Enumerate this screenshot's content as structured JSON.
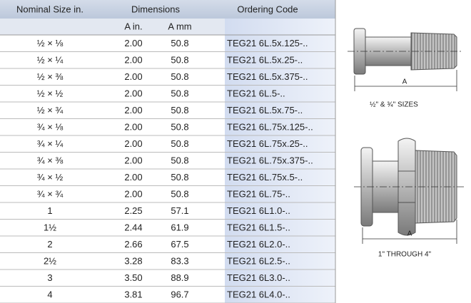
{
  "table": {
    "header": [
      "Nominal Size in.",
      "Dimensions",
      "Ordering Code"
    ],
    "subheader": [
      "A in.",
      "A mm"
    ],
    "rows": [
      [
        "½ × ⅛",
        "2.00",
        "50.8",
        "TEG21 6L.5x.125-.."
      ],
      [
        "½ × ¼",
        "2.00",
        "50.8",
        "TEG21 6L.5x.25-.."
      ],
      [
        "½ × ⅜",
        "2.00",
        "50.8",
        "TEG21 6L.5x.375-.."
      ],
      [
        "½ × ½",
        "2.00",
        "50.8",
        "TEG21 6L.5-.."
      ],
      [
        "½ × ¾",
        "2.00",
        "50.8",
        "TEG21 6L.5x.75-.."
      ],
      [
        "¾ × ⅛",
        "2.00",
        "50.8",
        "TEG21 6L.75x.125-.."
      ],
      [
        "¾ × ¼",
        "2.00",
        "50.8",
        "TEG21 6L.75x.25-.."
      ],
      [
        "¾ × ⅜",
        "2.00",
        "50.8",
        "TEG21 6L.75x.375-.."
      ],
      [
        "¾ × ½",
        "2.00",
        "50.8",
        "TEG21 6L.75x.5-.."
      ],
      [
        "¾ × ¾",
        "2.00",
        "50.8",
        "TEG21 6L.75-.."
      ],
      [
        "1",
        "2.25",
        "57.1",
        "TEG21 6L1.0-.."
      ],
      [
        "1½",
        "2.44",
        "61.9",
        "TEG21 6L1.5-.."
      ],
      [
        "2",
        "2.66",
        "67.5",
        "TEG21 6L2.0-.."
      ],
      [
        "2½",
        "3.28",
        "83.3",
        "TEG21 6L2.5-.."
      ],
      [
        "3",
        "3.50",
        "88.9",
        "TEG21 6L3.0-.."
      ],
      [
        "4",
        "3.81",
        "96.7",
        "TEG21 6L4.0-.."
      ]
    ]
  },
  "figures": [
    {
      "dimension": "A",
      "caption": "½\" & ¾\" SIZES"
    },
    {
      "dimension": "A",
      "caption": "1\" THROUGH 4\""
    }
  ]
}
